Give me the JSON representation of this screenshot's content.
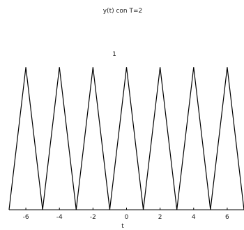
{
  "chart_data": {
    "type": "line",
    "title": "y(t) con T=2",
    "xlabel": "t",
    "ylabel": "",
    "annotation": "1",
    "xlim": [
      -7,
      7
    ],
    "ylim": [
      0,
      1.3
    ],
    "xticks": [
      -6,
      -4,
      -2,
      0,
      2,
      4,
      6
    ],
    "grid": false,
    "color": "#000000",
    "series": [
      {
        "x": [
          -7,
          -6,
          -5,
          -4,
          -3,
          -2,
          -1,
          0,
          1,
          2,
          3,
          4,
          5,
          6,
          7
        ],
        "y": [
          0,
          1,
          0,
          1,
          0,
          1,
          0,
          1,
          0,
          1,
          0,
          1,
          0,
          1,
          0
        ]
      }
    ]
  }
}
